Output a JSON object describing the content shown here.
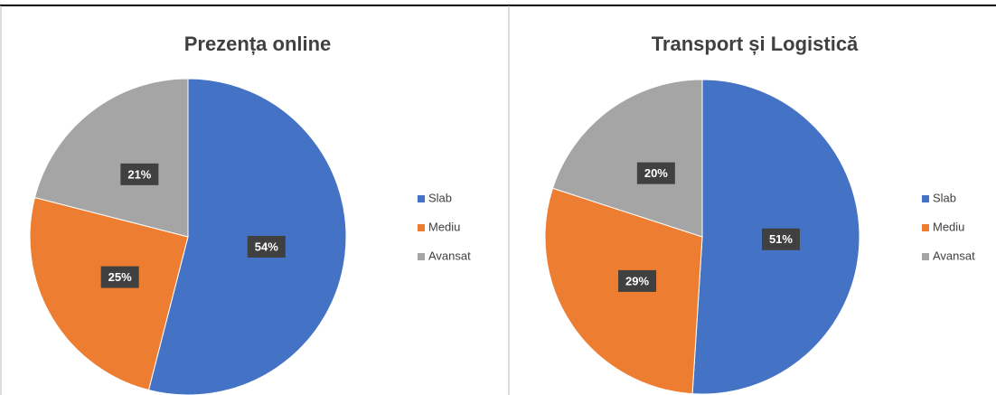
{
  "chart_data": [
    {
      "type": "pie",
      "title": "Prezența online",
      "categories": [
        "Slab",
        "Mediu",
        "Avansat"
      ],
      "series": [
        {
          "values": [
            54,
            25,
            21
          ],
          "value_labels": [
            "54%",
            "25%",
            "21%"
          ]
        }
      ],
      "colors": [
        "#4472c4",
        "#ed7d31",
        "#a5a5a5"
      ],
      "legend": "right"
    },
    {
      "type": "pie",
      "title": "Transport  și Logistică",
      "categories": [
        "Slab",
        "Mediu",
        "Avansat"
      ],
      "series": [
        {
          "values": [
            51,
            29,
            20
          ],
          "value_labels": [
            "51%",
            "29%",
            "20%"
          ]
        }
      ],
      "colors": [
        "#4472c4",
        "#ed7d31",
        "#a5a5a5"
      ],
      "legend": "right"
    }
  ]
}
